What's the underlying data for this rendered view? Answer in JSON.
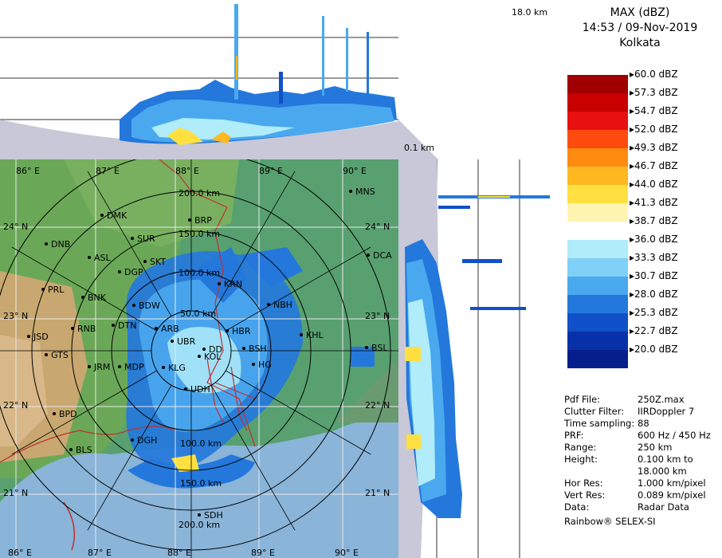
{
  "header": {
    "product": "MAX (dBZ)",
    "datetime": "14:53 / 09-Nov-2019",
    "station": "Kolkata"
  },
  "profile_labels": {
    "top_height": "18.0 km",
    "bottom_height": "0.1 km"
  },
  "legend": {
    "levels": [
      {
        "label": "60.0 dBZ",
        "color": "#a00000"
      },
      {
        "label": "57.3 dBZ",
        "color": "#c80000"
      },
      {
        "label": "54.7 dBZ",
        "color": "#e81010"
      },
      {
        "label": "52.0 dBZ",
        "color": "#ff4a10"
      },
      {
        "label": "49.3 dBZ",
        "color": "#ff8a10"
      },
      {
        "label": "46.7 dBZ",
        "color": "#ffb820"
      },
      {
        "label": "44.0 dBZ",
        "color": "#ffe040"
      },
      {
        "label": "41.3 dBZ",
        "color": "#fff4b0"
      },
      {
        "label": "38.7 dBZ",
        "color": "#ffffff"
      },
      {
        "label": "36.0 dBZ",
        "color": "#b0ecfa"
      },
      {
        "label": "33.3 dBZ",
        "color": "#7fd0f6"
      },
      {
        "label": "30.7 dBZ",
        "color": "#4aa8ee"
      },
      {
        "label": "28.0 dBZ",
        "color": "#2478dc"
      },
      {
        "label": "25.3 dBZ",
        "color": "#1050c8"
      },
      {
        "label": "22.7 dBZ",
        "color": "#0830a8"
      },
      {
        "label": "20.0 dBZ",
        "color": "#061e8c"
      }
    ]
  },
  "info": [
    {
      "key": "Pdf File:",
      "value": "250Z.max"
    },
    {
      "key": "Clutter Filter:",
      "value": "IIRDoppler 7"
    },
    {
      "key": "Time sampling:",
      "value": "88"
    },
    {
      "key": "PRF:",
      "value": "600 Hz / 450 Hz"
    },
    {
      "key": "Range:",
      "value": "250 km"
    },
    {
      "key": "Height:",
      "value": "0.100 km to"
    },
    {
      "key": "",
      "value": "18.000 km"
    },
    {
      "key": "Hor Res:",
      "value": "1.000 km/pixel"
    },
    {
      "key": "Vert Res:",
      "value": "0.089 km/pixel"
    },
    {
      "key": "Data:",
      "value": "Radar Data"
    }
  ],
  "footer": "Rainbow® SELEX-SI",
  "map": {
    "lon_labels": [
      "86° E",
      "87° E",
      "88° E",
      "89° E",
      "90° E"
    ],
    "lat_labels": [
      "24° N",
      "23° N",
      "22° N",
      "21° N"
    ],
    "range_labels": [
      "200.0 km",
      "150.0 km",
      "100.0 km",
      "50.0 km",
      "100.0 km",
      "150.0 km",
      "200.0 km"
    ],
    "stations": [
      {
        "name": "MNS"
      },
      {
        "name": "DMK"
      },
      {
        "name": "BRP"
      },
      {
        "name": "DNB"
      },
      {
        "name": "SUR"
      },
      {
        "name": "ASL"
      },
      {
        "name": "SKT"
      },
      {
        "name": "DCA"
      },
      {
        "name": "DGP"
      },
      {
        "name": "KRN"
      },
      {
        "name": "PRL"
      },
      {
        "name": "BNK"
      },
      {
        "name": "BDW"
      },
      {
        "name": "NBH"
      },
      {
        "name": "JSD"
      },
      {
        "name": "RNB"
      },
      {
        "name": "DTN"
      },
      {
        "name": "ARB"
      },
      {
        "name": "HBR"
      },
      {
        "name": "KHL"
      },
      {
        "name": "UBR"
      },
      {
        "name": "DD"
      },
      {
        "name": "KOL"
      },
      {
        "name": "BSH"
      },
      {
        "name": "BSL"
      },
      {
        "name": "GTS"
      },
      {
        "name": "JRM"
      },
      {
        "name": "MDP"
      },
      {
        "name": "KLG"
      },
      {
        "name": "HG"
      },
      {
        "name": "UDH"
      },
      {
        "name": "BPD"
      },
      {
        "name": "DGH"
      },
      {
        "name": "BLS"
      },
      {
        "name": "SDH"
      }
    ]
  }
}
